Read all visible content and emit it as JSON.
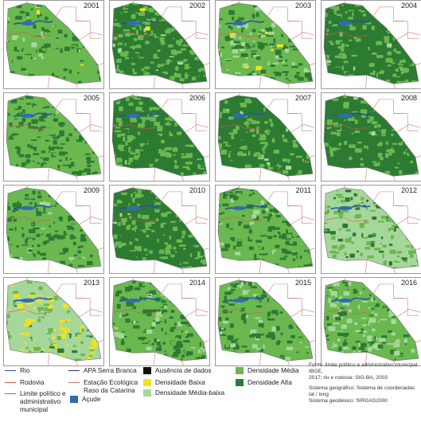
{
  "panels": [
    {
      "year": "2001",
      "mix": [
        0.7,
        0.25,
        0.03,
        0.02
      ]
    },
    {
      "year": "2002",
      "mix": [
        0.45,
        0.5,
        0.04,
        0.01
      ]
    },
    {
      "year": "2003",
      "mix": [
        0.4,
        0.35,
        0.22,
        0.03
      ]
    },
    {
      "year": "2004",
      "mix": [
        0.35,
        0.63,
        0.02,
        0.0
      ]
    },
    {
      "year": "2005",
      "mix": [
        0.55,
        0.43,
        0.02,
        0.0
      ]
    },
    {
      "year": "2006",
      "mix": [
        0.4,
        0.58,
        0.02,
        0.0
      ]
    },
    {
      "year": "2007",
      "mix": [
        0.4,
        0.58,
        0.02,
        0.0
      ]
    },
    {
      "year": "2008",
      "mix": [
        0.3,
        0.68,
        0.02,
        0.0
      ]
    },
    {
      "year": "2009",
      "mix": [
        0.55,
        0.42,
        0.03,
        0.0
      ]
    },
    {
      "year": "2010",
      "mix": [
        0.45,
        0.53,
        0.02,
        0.0
      ]
    },
    {
      "year": "2011",
      "mix": [
        0.55,
        0.4,
        0.05,
        0.0
      ]
    },
    {
      "year": "2012",
      "mix": [
        0.3,
        0.15,
        0.55,
        0.0
      ]
    },
    {
      "year": "2013",
      "mix": [
        0.15,
        0.05,
        0.55,
        0.25
      ]
    },
    {
      "year": "2014",
      "mix": [
        0.5,
        0.4,
        0.1,
        0.0
      ]
    },
    {
      "year": "2015",
      "mix": [
        0.55,
        0.35,
        0.1,
        0.0
      ]
    },
    {
      "year": "2016",
      "mix": [
        0.45,
        0.25,
        0.3,
        0.0
      ]
    }
  ],
  "colors": {
    "rio": "#2a4fa8",
    "rodovia": "#d9534f",
    "limite": "#7a7a7a",
    "acude": "#2f6cb4",
    "apa": "#2a2a6e",
    "estacao": "#c77",
    "ausencia": "#111111",
    "baixa": "#f2e21a",
    "media_baixa": "#a6d79a",
    "media": "#6ab84f",
    "alta": "#2d7a33"
  },
  "legend": {
    "rio": "Rio",
    "rodovia": "Rodovia",
    "limite": "Limite político e\nadministrativo\nmunicipal",
    "acude": "Açude",
    "apa": "APA Serra Branca",
    "estacao": "Estação Ecológica\nRaso da Catarina",
    "ausencia": "Ausência de dados",
    "baixa": "Densidade Baixa",
    "media_baixa": "Densidade Média-baixa",
    "media": "Densidade Média",
    "alta": "Densidade Alta"
  },
  "notes": {
    "source": "Fonte: limite político e administrativo municipal: IBGE,\n2017; rio e rodovia: SIG-BA, 2003",
    "system": "Sistema geográfico: Sistema de coordenadas lat / long\nSistema geodésico: SIRGAS2000"
  }
}
